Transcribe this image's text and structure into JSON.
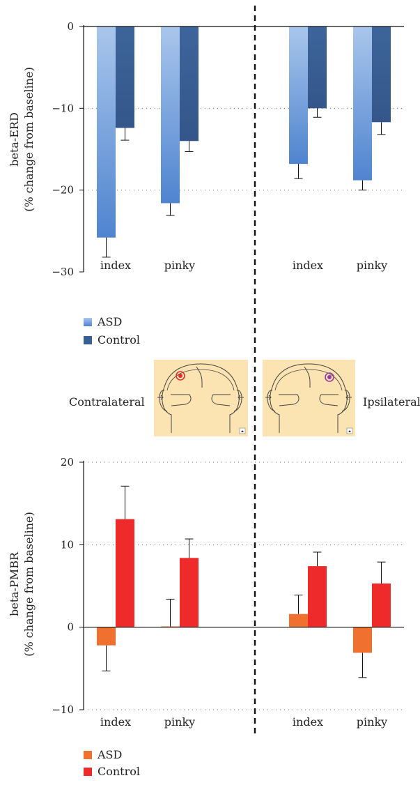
{
  "chart_data": [
    {
      "type": "bar",
      "ylabel": "beta-ERD",
      "ylabel_sub": "(% change from baseline)",
      "ylim": [
        -30,
        0
      ],
      "yticks": [
        "0",
        "−10",
        "−20",
        "−30"
      ],
      "ytick_values": [
        0,
        -10,
        -20,
        -30
      ],
      "grid": true,
      "groups": [
        {
          "name": "contralateral",
          "categories": [
            "index",
            "pinky"
          ]
        },
        {
          "name": "ipsilateral",
          "categories": [
            "index",
            "pinky"
          ]
        }
      ],
      "categories": [
        "index",
        "pinky",
        "index",
        "pinky"
      ],
      "series": [
        {
          "name": "ASD",
          "color": "#5b8fd6",
          "values": [
            -25.8,
            -21.6,
            -16.8,
            -18.8
          ],
          "errors": [
            2.4,
            1.5,
            1.8,
            1.2
          ]
        },
        {
          "name": "Control",
          "color": "#3a5f93",
          "values": [
            -12.4,
            -14.0,
            -10.0,
            -11.7
          ],
          "errors": [
            1.5,
            1.3,
            1.1,
            1.5
          ]
        }
      ],
      "legend": [
        "ASD",
        "Control"
      ],
      "legend_position": "bottom-left"
    },
    {
      "type": "bar",
      "ylabel": "beta-PMBR",
      "ylabel_sub": "(% change from baseline)",
      "ylim": [
        -10,
        20
      ],
      "yticks": [
        "20",
        "10",
        "0",
        "−10"
      ],
      "ytick_values": [
        20,
        10,
        0,
        -10
      ],
      "grid": true,
      "groups": [
        {
          "name": "contralateral",
          "categories": [
            "index",
            "pinky"
          ]
        },
        {
          "name": "ipsilateral",
          "categories": [
            "index",
            "pinky"
          ]
        }
      ],
      "categories": [
        "index",
        "pinky",
        "index",
        "pinky"
      ],
      "series": [
        {
          "name": "ASD",
          "color": "#f07030",
          "values": [
            -2.2,
            0.1,
            1.6,
            -3.1
          ],
          "errors": [
            3.1,
            3.3,
            2.3,
            3.0
          ]
        },
        {
          "name": "Control",
          "color": "#ee2a2a",
          "values": [
            13.1,
            8.4,
            7.4,
            5.3
          ],
          "errors": [
            4.0,
            2.3,
            1.7,
            2.6
          ]
        }
      ],
      "legend": [
        "ASD",
        "Control"
      ],
      "legend_position": "bottom-left"
    }
  ],
  "sensor_labels": {
    "left": "Contralateral",
    "right": "Ipsilateral"
  },
  "colors": {
    "head_panel_bg": "#fbe3b2",
    "sensor_left": "#e03030",
    "sensor_right": "#9a3aa0"
  }
}
